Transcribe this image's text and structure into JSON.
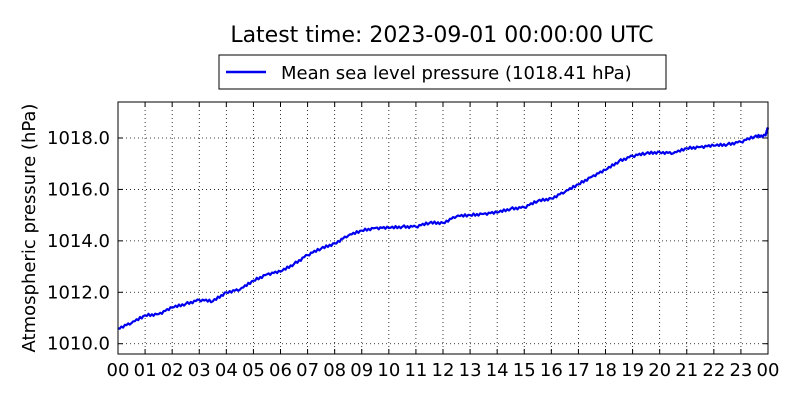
{
  "chart_data": {
    "type": "line",
    "title": "Latest time: 2023-09-01 00:00:00 UTC",
    "ylabel": "Atmospheric pressure (hPa)",
    "xlabel": "",
    "x_unit": "hour (UTC)",
    "xlim": [
      0,
      24
    ],
    "ylim": [
      1009.6,
      1019.4
    ],
    "x_ticks": [
      0,
      1,
      2,
      3,
      4,
      5,
      6,
      7,
      8,
      9,
      10,
      11,
      12,
      13,
      14,
      15,
      16,
      17,
      18,
      19,
      20,
      21,
      22,
      23,
      24
    ],
    "x_tick_labels": [
      "00",
      "01",
      "02",
      "03",
      "04",
      "05",
      "06",
      "07",
      "08",
      "09",
      "10",
      "11",
      "12",
      "13",
      "14",
      "15",
      "16",
      "17",
      "18",
      "19",
      "20",
      "21",
      "22",
      "23",
      "00"
    ],
    "y_ticks": [
      1010.0,
      1012.0,
      1014.0,
      1016.0,
      1018.0
    ],
    "y_tick_labels": [
      "1010.0",
      "1012.0",
      "1014.0",
      "1016.0",
      "1018.0"
    ],
    "grid": true,
    "legend_position": "top-center, above plot",
    "series": [
      {
        "name": "Mean sea level pressure (1018.41 hPa)",
        "color": "#0000ee",
        "x": [
          0,
          0.5,
          1,
          1.5,
          2,
          2.5,
          3,
          3.5,
          4,
          4.5,
          5,
          5.5,
          6,
          6.5,
          7,
          7.5,
          8,
          8.5,
          9,
          9.5,
          10,
          10.5,
          11,
          11.5,
          12,
          12.5,
          13,
          13.5,
          14,
          14.5,
          15,
          15.5,
          16,
          16.5,
          17,
          17.5,
          18,
          18.5,
          19,
          19.5,
          20,
          20.5,
          21,
          21.5,
          22,
          22.5,
          23,
          23.5,
          23.9,
          24
        ],
        "y": [
          1010.6,
          1010.8,
          1011.1,
          1011.15,
          1011.4,
          1011.55,
          1011.7,
          1011.65,
          1012.0,
          1012.1,
          1012.45,
          1012.7,
          1012.8,
          1013.1,
          1013.45,
          1013.7,
          1013.9,
          1014.2,
          1014.4,
          1014.5,
          1014.5,
          1014.55,
          1014.55,
          1014.7,
          1014.7,
          1014.95,
          1015.0,
          1015.05,
          1015.1,
          1015.25,
          1015.3,
          1015.55,
          1015.65,
          1015.9,
          1016.2,
          1016.5,
          1016.75,
          1017.1,
          1017.3,
          1017.4,
          1017.45,
          1017.4,
          1017.6,
          1017.65,
          1017.7,
          1017.75,
          1017.85,
          1018.05,
          1018.1,
          1018.41
        ]
      }
    ]
  }
}
